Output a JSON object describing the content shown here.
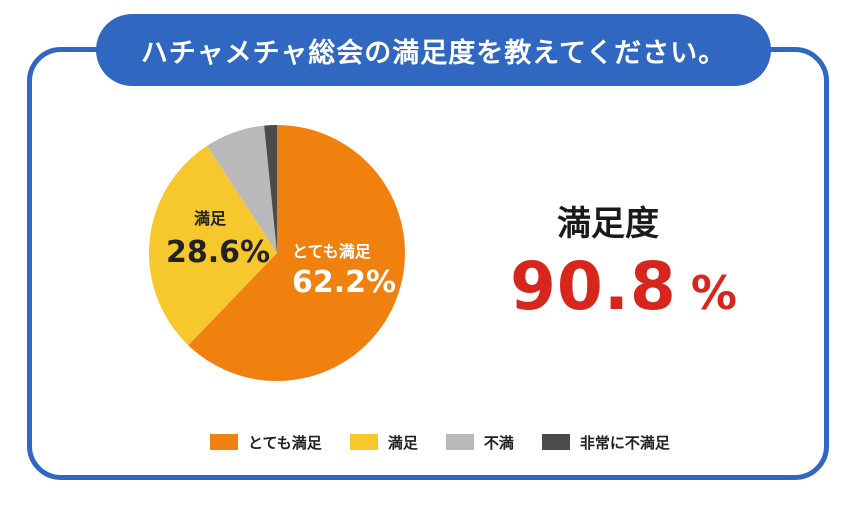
{
  "header": {
    "title": "ハチャメチャ総会の満足度を教えてください。"
  },
  "kpi": {
    "label": "満足度",
    "value": "90.8",
    "unit": "%"
  },
  "chart_data": {
    "type": "pie",
    "title": "ハチャメチャ総会の満足度を教えてください。",
    "slices": [
      {
        "name": "とても満足",
        "value": 62.2,
        "label": "62.2%",
        "color": "#f0810f"
      },
      {
        "name": "満足",
        "value": 28.6,
        "label": "28.6%",
        "color": "#f6c82d"
      },
      {
        "name": "不満",
        "value": 7.6,
        "color": "#b9b9b9"
      },
      {
        "name": "非常に不満足",
        "value": 1.6,
        "color": "#4b4b4b"
      }
    ],
    "legend": {
      "placement": "bottom"
    }
  },
  "colors": {
    "frame": "#2f67c1",
    "accent": "#d7271d"
  }
}
